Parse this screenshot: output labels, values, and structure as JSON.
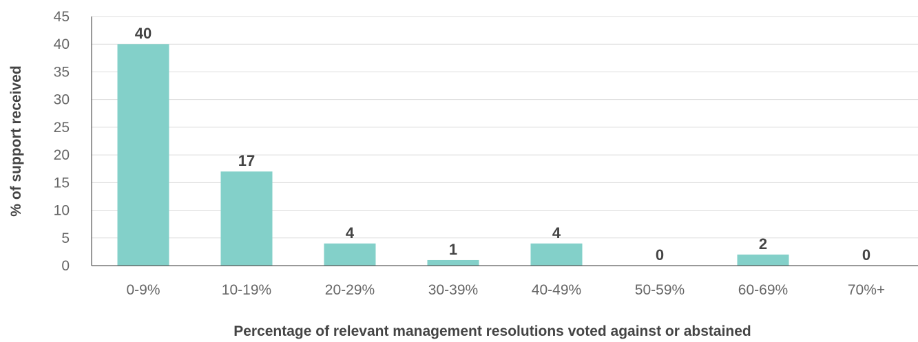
{
  "chart_data": {
    "type": "bar",
    "categories": [
      "0-9%",
      "10-19%",
      "20-29%",
      "30-39%",
      "40-49%",
      "50-59%",
      "60-69%",
      "70%+"
    ],
    "values": [
      40,
      17,
      4,
      1,
      4,
      0,
      2,
      0
    ],
    "data_labels": [
      "40",
      "17",
      "4",
      "1",
      "4",
      "0",
      "2",
      "0"
    ],
    "ylabel": "% of support received",
    "xlabel": "Percentage of relevant management resolutions voted against or abstained",
    "ylim": [
      0,
      45
    ],
    "yticks": [
      0,
      5,
      10,
      15,
      20,
      25,
      30,
      35,
      40,
      45
    ],
    "grid": true,
    "bar_color": "#83d0c9"
  }
}
